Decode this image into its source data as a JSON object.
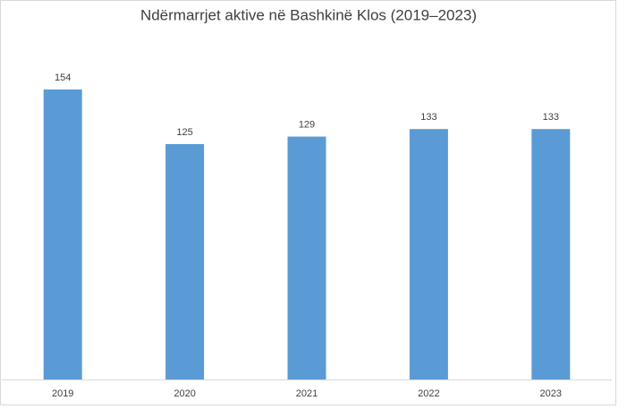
{
  "chart_data": {
    "type": "bar",
    "title": "Ndërmarrjet aktive në Bashkinë Klos (2019–2023)",
    "categories": [
      "2019",
      "2020",
      "2021",
      "2022",
      "2023"
    ],
    "values": [
      154,
      125,
      129,
      133,
      133
    ],
    "color": "#5b9bd5"
  }
}
